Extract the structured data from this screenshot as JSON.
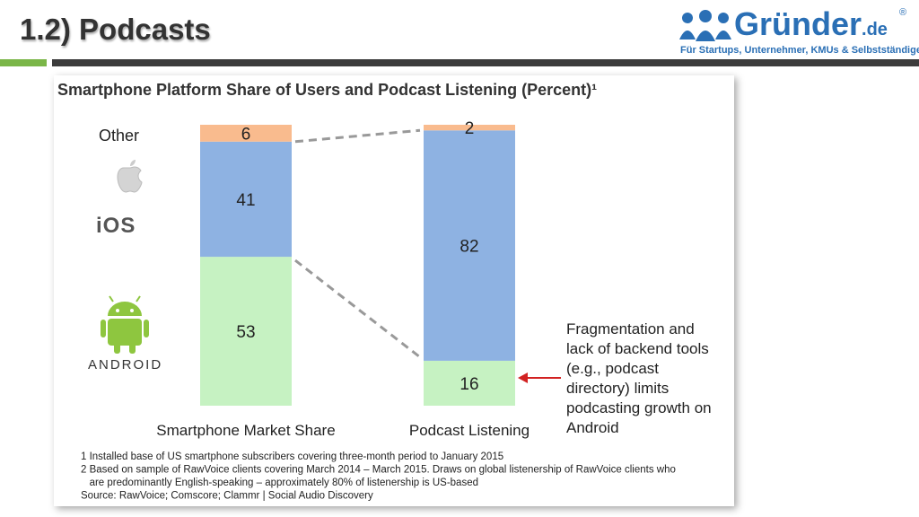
{
  "slide": {
    "title": "1.2) Podcasts",
    "logo_text": "Gründer",
    "logo_suffix": ".de",
    "logo_reg": "®",
    "logo_subtitle": "Für Startups, Unternehmer, KMUs & Selbstständige"
  },
  "chart_data": {
    "type": "bar",
    "stacked": true,
    "title": "Smartphone Platform Share of Users and Podcast Listening (Percent)¹",
    "categories": [
      "Smartphone Market Share",
      "Podcast Listening"
    ],
    "series": [
      {
        "name": "Android",
        "values": [
          53,
          16
        ],
        "color": "#c6f2c2"
      },
      {
        "name": "iOS",
        "values": [
          41,
          82
        ],
        "color": "#8eb2e2"
      },
      {
        "name": "Other",
        "values": [
          6,
          2
        ],
        "color": "#f9bb8e"
      }
    ],
    "ylim": [
      0,
      100
    ],
    "legend_labels": {
      "other": "Other",
      "ios": "iOS",
      "android": "ANDROID"
    },
    "annotation": [
      "Fragmentation and",
      "lack of backend tools",
      "(e.g., podcast",
      "directory) limits",
      "podcasting growth on",
      "Android"
    ],
    "footnotes": [
      "1 Installed base of US smartphone subscribers covering three-month period to January 2015",
      "2 Based on sample of RawVoice clients covering March 2014 – March 2015. Draws on global listenership of RawVoice clients who",
      "   are predominantly English-speaking – approximately 80% of listenership is US-based",
      "Source: RawVoice; Comscore; Clammr | Social Audio Discovery"
    ],
    "icons": [
      "apple-icon",
      "android-icon"
    ]
  }
}
